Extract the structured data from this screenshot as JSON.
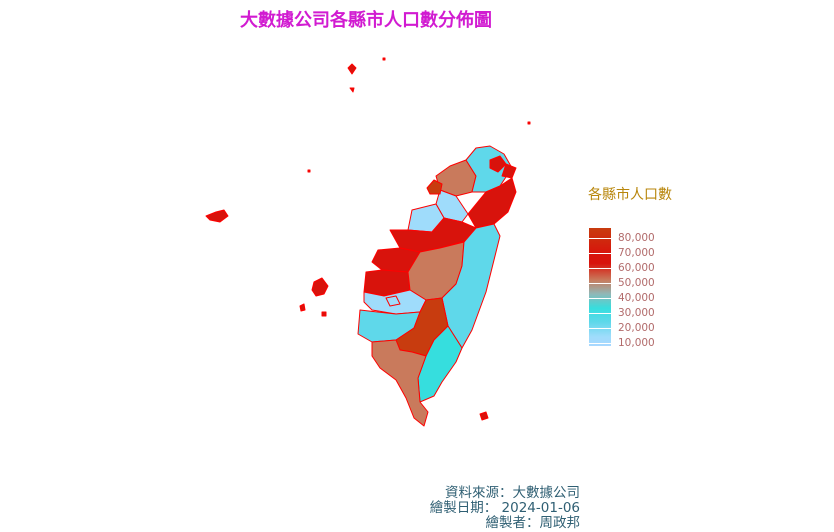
{
  "title": "大數據公司各縣市人口數分佈圖",
  "legend": {
    "title": "各縣市人口數",
    "labels": [
      "80,000",
      "70,000",
      "60,000",
      "50,000",
      "40,000",
      "30,000",
      "20,000",
      "10,000"
    ]
  },
  "caption": {
    "source": "資料來源：大數據公司",
    "date": "繪製日期： 2024-01-06",
    "author": "繪製者：周政邦"
  },
  "colors": {
    "title": "#d11bd1",
    "border": "#ff0000",
    "legend_title": "#b8860b",
    "legend_labels": "#b26b6b",
    "caption": "#2f5f73",
    "scale_high": "#c83c0f",
    "scale_60k": "#d8130c",
    "scale_50k": "#c97a5c",
    "scale_30k": "#36dede",
    "scale_low": "#a8d8ff"
  }
}
